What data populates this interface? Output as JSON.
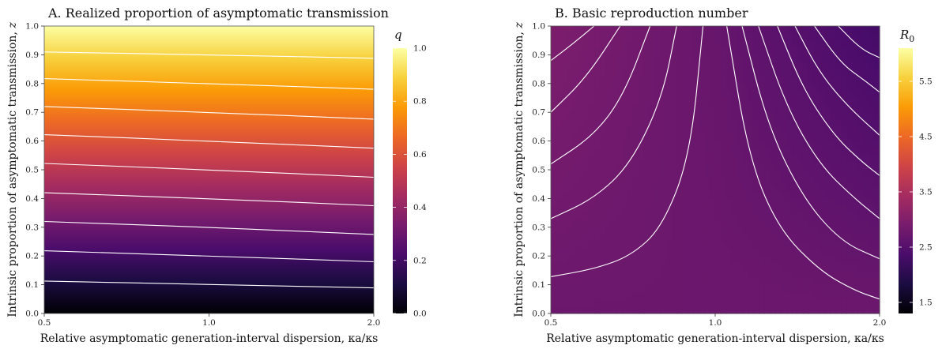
{
  "chart_data": [
    {
      "type": "heatmap",
      "panel": "A",
      "title": "A. Realized proportion of asymptomatic transmission",
      "xlabel": "Relative asymptomatic generation-interval dispersion, κa/κs",
      "ylabel": "Intrinsic proportion of asymptomatic transmission, z",
      "x_scale": "log",
      "xlim": [
        0.5,
        2.0
      ],
      "ylim": [
        0.0,
        1.0
      ],
      "x_ticks": [
        "0.5",
        "1.0",
        "2.0"
      ],
      "y_ticks": [
        "0.0",
        "0.1",
        "0.2",
        "0.3",
        "0.4",
        "0.5",
        "0.6",
        "0.7",
        "0.8",
        "0.9",
        "1.0"
      ],
      "colorbar": {
        "label": "q",
        "range": [
          0.0,
          1.0
        ],
        "ticks": [
          "0.0",
          "0.2",
          "0.4",
          "0.6",
          "0.8",
          "1.0"
        ],
        "colormap": "inferno",
        "colors": [
          "#000004",
          "#1b0c41",
          "#4a0c6b",
          "#781c6d",
          "#a52c60",
          "#cf4446",
          "#ed6925",
          "#fb9b06",
          "#f7d13d",
          "#fcffa4"
        ]
      },
      "contour_levels": [
        0.1,
        0.2,
        0.3,
        0.4,
        0.5,
        0.6,
        0.7,
        0.8,
        0.9
      ],
      "contours": [
        {
          "level": 0.1,
          "x": [
            0.5,
            1.0,
            2.0
          ],
          "y": [
            0.113,
            0.101,
            0.089
          ]
        },
        {
          "level": 0.2,
          "x": [
            0.5,
            1.0,
            2.0
          ],
          "y": [
            0.218,
            0.2,
            0.18
          ]
        },
        {
          "level": 0.3,
          "x": [
            0.5,
            1.0,
            2.0
          ],
          "y": [
            0.32,
            0.3,
            0.275
          ]
        },
        {
          "level": 0.4,
          "x": [
            0.5,
            1.0,
            2.0
          ],
          "y": [
            0.42,
            0.4,
            0.375
          ]
        },
        {
          "level": 0.5,
          "x": [
            0.5,
            1.0,
            2.0
          ],
          "y": [
            0.522,
            0.5,
            0.474
          ]
        },
        {
          "level": 0.6,
          "x": [
            0.5,
            1.0,
            2.0
          ],
          "y": [
            0.622,
            0.6,
            0.575
          ]
        },
        {
          "level": 0.7,
          "x": [
            0.5,
            1.0,
            2.0
          ],
          "y": [
            0.72,
            0.7,
            0.676
          ]
        },
        {
          "level": 0.8,
          "x": [
            0.5,
            1.0,
            2.0
          ],
          "y": [
            0.817,
            0.8,
            0.78
          ]
        },
        {
          "level": 0.9,
          "x": [
            0.5,
            1.0,
            2.0
          ],
          "y": [
            0.91,
            0.9,
            0.888
          ]
        }
      ]
    },
    {
      "type": "heatmap",
      "panel": "B",
      "title": "B. Basic reproduction number",
      "xlabel": "Relative asymptomatic generation-interval dispersion, κa/κs",
      "ylabel": "Intrinsic proportion of asymptomatic transmission, z",
      "x_scale": "log",
      "xlim": [
        0.5,
        2.0
      ],
      "ylim": [
        0.0,
        1.0
      ],
      "x_ticks": [
        "0.5",
        "1.0",
        "2.0"
      ],
      "y_ticks": [
        "0.0",
        "0.1",
        "0.2",
        "0.3",
        "0.4",
        "0.5",
        "0.6",
        "0.7",
        "0.8",
        "0.9",
        "1.0"
      ],
      "colorbar": {
        "label": "R0",
        "range": [
          1.3,
          6.1
        ],
        "ticks": [
          "1.5",
          "2.5",
          "3.5",
          "4.5",
          "5.5"
        ],
        "colormap": "inferno",
        "colors": [
          "#000004",
          "#1b0c41",
          "#4a0c6b",
          "#781c6d",
          "#a52c60",
          "#cf4446",
          "#ed6925",
          "#fb9b06",
          "#f7d13d",
          "#fcffa4"
        ]
      },
      "field": {
        "grid_x": [
          0.5,
          1.0,
          2.0
        ],
        "grid_y": [
          0.0,
          1.0
        ],
        "values": [
          [
            2.75,
            2.75,
            2.75
          ],
          [
            2.95,
            2.7,
            2.3
          ]
        ]
      },
      "contours": [
        {
          "x": [
            0.5,
            0.6,
            0.7,
            0.8,
            0.9,
            0.95
          ],
          "y": [
            0.128,
            0.155,
            0.2,
            0.3,
            0.55,
            1.0
          ]
        },
        {
          "x": [
            0.5,
            0.6,
            0.7,
            0.8,
            0.85
          ],
          "y": [
            0.33,
            0.4,
            0.52,
            0.75,
            1.0
          ]
        },
        {
          "x": [
            0.5,
            0.6,
            0.68,
            0.76
          ],
          "y": [
            0.52,
            0.62,
            0.76,
            1.0
          ]
        },
        {
          "x": [
            0.5,
            0.58,
            0.67
          ],
          "y": [
            0.7,
            0.82,
            1.0
          ]
        },
        {
          "x": [
            0.5,
            0.55,
            0.6
          ],
          "y": [
            0.88,
            0.94,
            1.0
          ]
        },
        {
          "x": [
            1.05,
            1.15,
            1.3,
            1.55,
            1.8,
            2.0
          ],
          "y": [
            1.0,
            0.55,
            0.3,
            0.15,
            0.08,
            0.05
          ]
        },
        {
          "x": [
            1.12,
            1.25,
            1.45,
            1.7,
            2.0
          ],
          "y": [
            1.0,
            0.65,
            0.4,
            0.25,
            0.19
          ]
        },
        {
          "x": [
            1.2,
            1.35,
            1.55,
            1.8,
            2.0
          ],
          "y": [
            1.0,
            0.72,
            0.52,
            0.4,
            0.33
          ]
        },
        {
          "x": [
            1.3,
            1.45,
            1.65,
            1.85,
            2.0
          ],
          "y": [
            1.0,
            0.78,
            0.62,
            0.53,
            0.48
          ]
        },
        {
          "x": [
            1.4,
            1.55,
            1.75,
            2.0
          ],
          "y": [
            1.0,
            0.84,
            0.72,
            0.62
          ]
        },
        {
          "x": [
            1.52,
            1.7,
            1.88,
            2.0
          ],
          "y": [
            1.0,
            0.87,
            0.81,
            0.77
          ]
        },
        {
          "x": [
            1.68,
            1.85,
            2.0
          ],
          "y": [
            1.0,
            0.92,
            0.89
          ]
        }
      ]
    }
  ]
}
